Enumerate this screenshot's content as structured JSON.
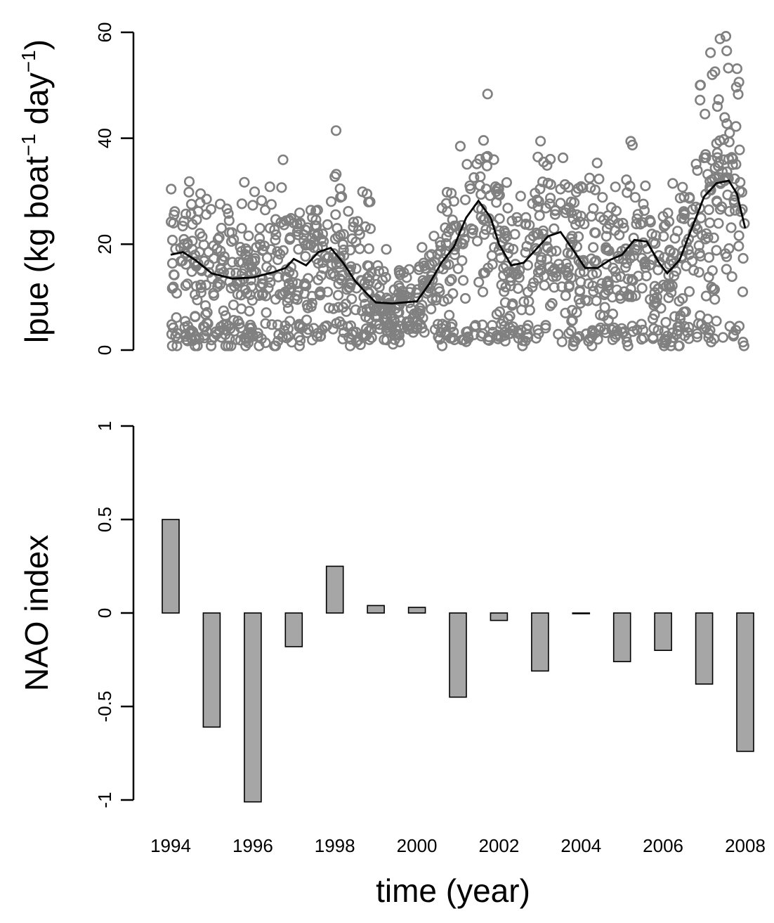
{
  "chart_data": [
    {
      "type": "scatter",
      "ylabel_main": "lpue (kg boat",
      "ylabel_sup1": "−1",
      "ylabel_mid": " day",
      "ylabel_sup2": "−1",
      "ylabel_end": ")",
      "ylim": [
        0,
        60
      ],
      "xlim": [
        1994,
        2008
      ],
      "yticks": [
        "0",
        "20",
        "40",
        "60"
      ],
      "point_color": "#808080",
      "line_color": "#000000",
      "smooth_line": {
        "x": [
          1994.0,
          1994.3,
          1994.6,
          1995.0,
          1995.5,
          1996.0,
          1996.5,
          1996.8,
          1997.0,
          1997.3,
          1997.6,
          1997.9,
          1998.2,
          1998.5,
          1998.8,
          1999.0,
          1999.4,
          1999.7,
          2000.0,
          2000.3,
          2000.6,
          2000.9,
          2001.2,
          2001.5,
          2001.8,
          2002.0,
          2002.3,
          2002.6,
          2002.9,
          2003.2,
          2003.5,
          2003.8,
          2004.1,
          2004.4,
          2004.7,
          2005.0,
          2005.3,
          2005.6,
          2005.9,
          2006.1,
          2006.4,
          2006.7,
          2007.0,
          2007.3,
          2007.6,
          2007.8,
          2008.0
        ],
        "y": [
          18.0,
          18.5,
          17.0,
          14.5,
          13.5,
          13.7,
          14.7,
          15.5,
          17.2,
          16.0,
          18.5,
          19.3,
          16.5,
          13.0,
          10.5,
          9.0,
          8.8,
          9.0,
          9.2,
          12.5,
          16.5,
          19.5,
          25.0,
          28.2,
          25.0,
          20.0,
          16.0,
          16.5,
          19.0,
          21.5,
          22.3,
          19.0,
          15.5,
          15.5,
          17.0,
          18.0,
          20.8,
          20.5,
          16.5,
          14.5,
          17.0,
          23.0,
          29.0,
          31.5,
          32.0,
          29.5,
          23.0
        ]
      },
      "scatter_points": {
        "x": [],
        "y": []
      }
    },
    {
      "type": "bar",
      "ylabel": "NAO index",
      "xlabel": "time (year)",
      "ylim": [
        -1,
        1
      ],
      "yticks": [
        "-1",
        "-0.5",
        "0",
        "0.5",
        "1"
      ],
      "xticks": [
        "1994",
        "1996",
        "1998",
        "2000",
        "2002",
        "2004",
        "2006",
        "2008"
      ],
      "bar_color": "#a6a6a6",
      "categories": [
        1994,
        1995,
        1996,
        1997,
        1998,
        1999,
        2000,
        2001,
        2002,
        2003,
        2004,
        2005,
        2006,
        2007,
        2008
      ],
      "values": [
        0.5,
        -0.61,
        -1.01,
        -0.18,
        0.25,
        0.04,
        0.03,
        -0.45,
        -0.04,
        -0.31,
        0.0,
        -0.26,
        -0.2,
        -0.38,
        -0.74
      ]
    }
  ]
}
